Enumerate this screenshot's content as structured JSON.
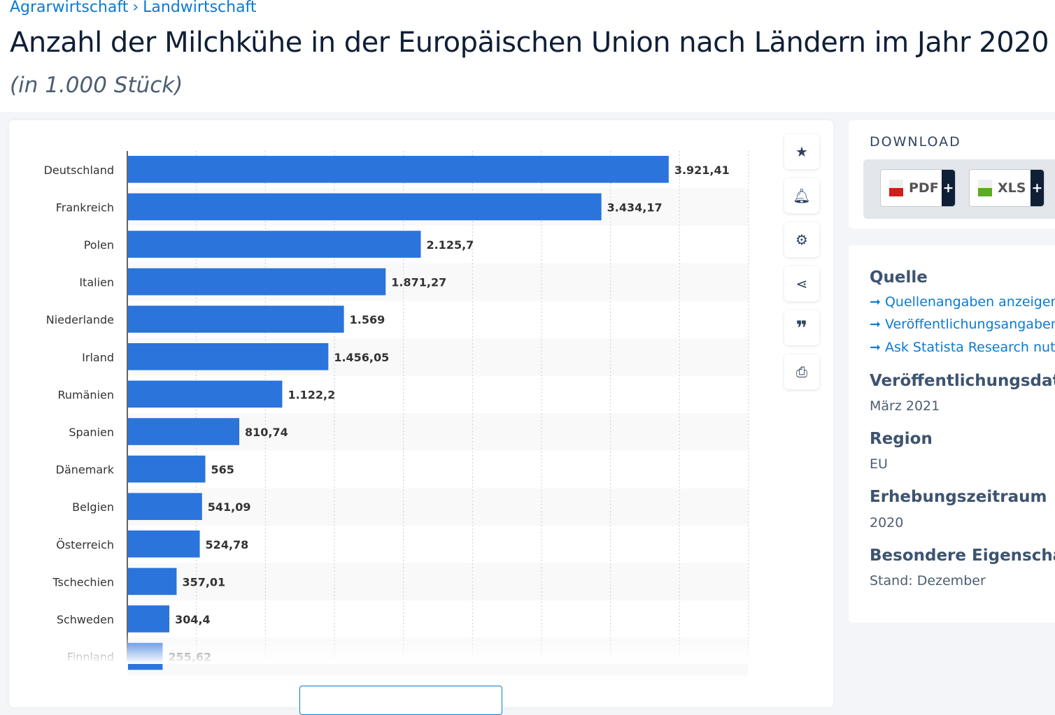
{
  "breadcrumb": [
    "Agrarwirtschaft",
    "›",
    "Landwirtschaft"
  ],
  "title": "Anzahl der Milchkühe in der Europäischen Union nach Ländern im Jahr 2020",
  "subtitle": "(in 1.000 Stück)",
  "tools": [
    "star-icon",
    "bell-icon",
    "gear-icon",
    "share-icon",
    "quote-icon",
    "print-icon"
  ],
  "download": {
    "title": "DOWNLOAD",
    "pdf": "PDF",
    "xls": "XLS",
    "plus": "+"
  },
  "info": {
    "source_title": "Quelle",
    "links": [
      "Quellenangaben anzeigen",
      "Veröffentlichungsangaben",
      "Ask Statista Research nutzen"
    ],
    "pub_date_title": "Veröffentlichungsdatum",
    "pub_date": "März 2021",
    "region_title": "Region",
    "region": "EU",
    "period_title": "Erhebungszeitraum",
    "period": "2020",
    "special_title": "Besondere Eigenschaften",
    "special": "Stand: Dezember"
  },
  "colors": {
    "bar": "#2a74dc",
    "link": "#0b7ad1"
  },
  "chart_data": {
    "type": "bar",
    "orientation": "horizontal",
    "categories": [
      "Deutschland",
      "Frankreich",
      "Polen",
      "Italien",
      "Niederlande",
      "Irland",
      "Rumänien",
      "Spanien",
      "Dänemark",
      "Belgien",
      "Österreich",
      "Tschechien",
      "Schweden",
      "Finnland"
    ],
    "values": [
      3921.41,
      3434.17,
      2125.7,
      1871.27,
      1569,
      1456.05,
      1122.2,
      810.74,
      565,
      541.09,
      524.78,
      357.01,
      304.4,
      255.62
    ],
    "labels": [
      "3.921,41",
      "3.434,17",
      "2.125,7",
      "1.871,27",
      "1.569",
      "1.456,05",
      "1.122,2",
      "810,74",
      "565",
      "541,09",
      "524,78",
      "357,01",
      "304,4",
      "255,62"
    ],
    "xlim": [
      0,
      4500
    ],
    "grid": true
  }
}
